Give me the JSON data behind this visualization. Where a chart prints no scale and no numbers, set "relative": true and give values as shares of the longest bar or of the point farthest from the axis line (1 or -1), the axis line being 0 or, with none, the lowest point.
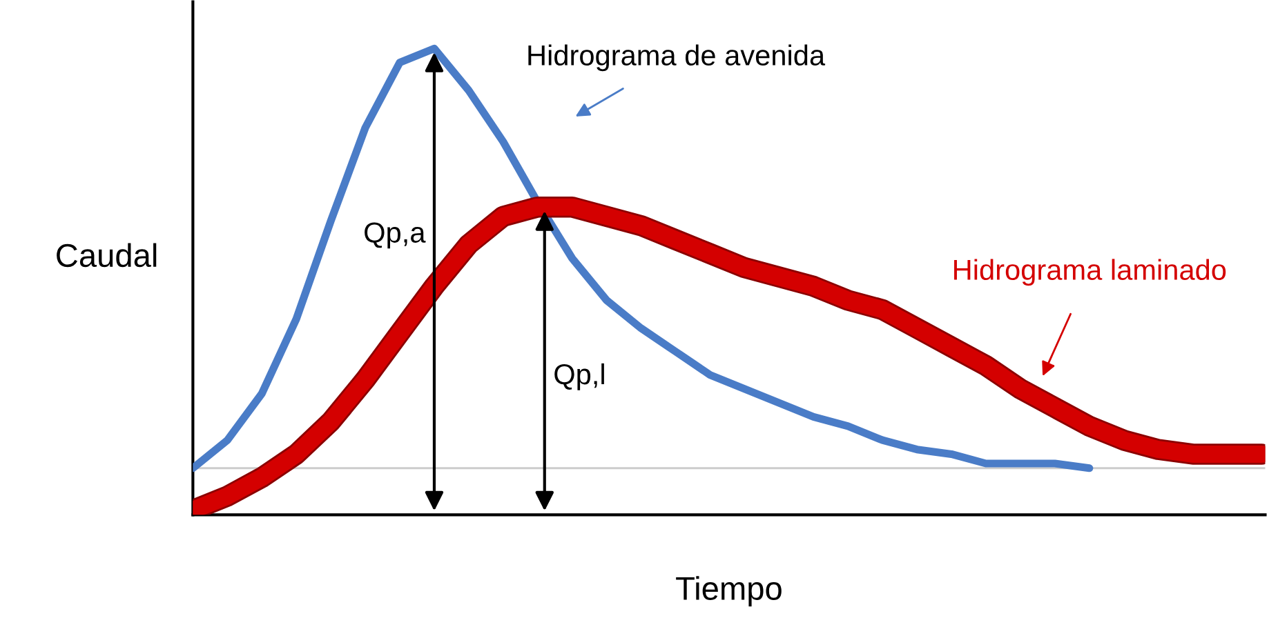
{
  "chart_data": {
    "type": "line",
    "relative": true,
    "xlabel": "Tiempo",
    "ylabel": "Caudal",
    "categories": [
      null,
      null,
      null,
      null,
      null,
      null,
      null,
      null,
      null,
      null,
      null,
      null,
      null,
      null,
      null,
      null,
      null,
      null,
      null,
      null,
      null,
      null,
      null,
      null,
      null,
      null,
      null,
      null,
      null,
      null,
      null,
      null
    ],
    "series": [
      {
        "name": "Hidrograma de avenida",
        "color": "#4a7cc7",
        "values": [
          0.1,
          0.16,
          0.26,
          0.42,
          0.63,
          0.83,
          0.97,
          1.0,
          0.91,
          0.8,
          0.67,
          0.55,
          0.46,
          0.4,
          0.35,
          0.3,
          0.27,
          0.24,
          0.21,
          0.19,
          0.16,
          0.14,
          0.13,
          0.11,
          0.11,
          0.11,
          0.1,
          null,
          null,
          null,
          null,
          null
        ]
      },
      {
        "name": "Hidrograma laminado",
        "color": "#d40000",
        "values": [
          0.01,
          0.04,
          0.08,
          0.13,
          0.2,
          0.29,
          0.39,
          0.49,
          0.58,
          0.64,
          0.66,
          0.66,
          0.64,
          0.62,
          0.59,
          0.56,
          0.53,
          0.51,
          0.49,
          0.46,
          0.44,
          0.4,
          0.36,
          0.32,
          0.27,
          0.23,
          0.19,
          0.16,
          0.14,
          0.13,
          0.13,
          0.13
        ]
      }
    ],
    "ref_lines": [
      {
        "axis": "y",
        "value": 0.1,
        "color": "#cccccc"
      }
    ],
    "annotations": [
      "Qp,a",
      "Qp,l"
    ],
    "legend": false,
    "marker": "none",
    "line_style": "solid"
  }
}
